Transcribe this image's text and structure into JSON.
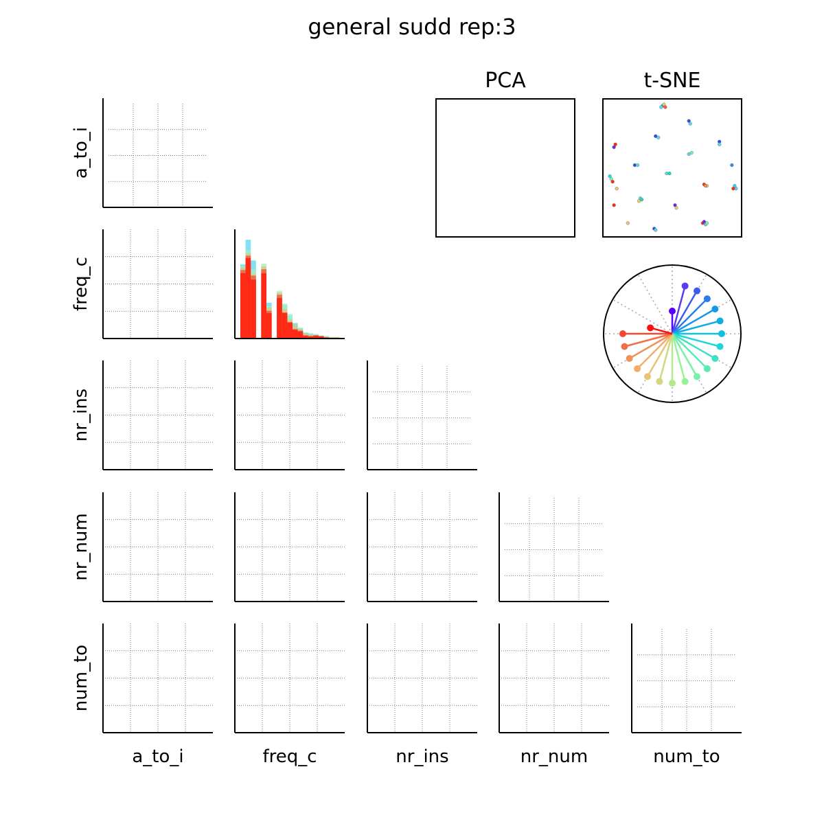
{
  "title": "general sudd rep:3",
  "variables": [
    "a_to_i",
    "freq_c",
    "nr_ins",
    "nr_num",
    "num_to"
  ],
  "pca_title": "PCA",
  "tsne_title": "t-SNE",
  "chart_data": [
    {
      "type": "matrix",
      "title": "general sudd rep:3",
      "rows": [
        "a_to_i",
        "freq_c",
        "nr_ins",
        "nr_num",
        "num_to"
      ],
      "columns": [
        "a_to_i",
        "freq_c",
        "nr_ins",
        "nr_num",
        "num_to"
      ],
      "grid": true,
      "note_cells": "all off-diagonal and diagonal panels empty except freq_c histogram"
    },
    {
      "type": "bar",
      "panel": "freq_c histogram (diagonal)",
      "stacking": "overlaid",
      "bins": 20,
      "series": [
        {
          "color": "#ff2a15",
          "values": [
            8.1,
            10.0,
            7.3,
            0.0,
            8.1,
            3.1,
            0.0,
            5.0,
            3.1,
            1.9,
            1.0,
            0.8,
            0.3,
            0.2,
            0.3,
            0.2,
            0.0,
            0.0,
            0.0,
            0.0
          ]
        },
        {
          "color": "#f0503a",
          "values": [
            8.5,
            10.3,
            7.8,
            0.0,
            8.6,
            3.4,
            0.0,
            5.4,
            3.2,
            2.0,
            1.1,
            0.9,
            0.3,
            0.2,
            0.3,
            0.2,
            0.1,
            0.0,
            0.0,
            0.0
          ]
        },
        {
          "color": "#e6c47c",
          "values": [
            8.8,
            10.6,
            8.0,
            0.0,
            9.0,
            3.8,
            0.0,
            5.7,
            3.6,
            2.3,
            1.5,
            1.0,
            0.5,
            0.3,
            0.3,
            0.2,
            0.1,
            0.1,
            0.1,
            0.0
          ]
        },
        {
          "color": "#a0f0c0",
          "values": [
            9.0,
            11.0,
            8.6,
            0.0,
            9.3,
            4.0,
            0.0,
            5.9,
            4.3,
            3.0,
            1.9,
            1.3,
            0.7,
            0.6,
            0.5,
            0.3,
            0.2,
            0.1,
            0.1,
            0.0
          ]
        },
        {
          "color": "#7a5df0",
          "values": [
            6.0,
            8.2,
            5.5,
            0.0,
            6.5,
            2.6,
            0.0,
            4.1,
            2.5,
            1.6,
            1.8,
            1.1,
            0.6,
            0.4,
            0.2,
            0.1,
            0.0,
            0.0,
            0.0,
            0.0
          ]
        },
        {
          "color": "#5ad6f0",
          "values": [
            9.2,
            12.3,
            9.7,
            0.0,
            8.9,
            4.4,
            0.0,
            5.6,
            4.1,
            2.8,
            1.6,
            1.2,
            0.6,
            0.5,
            0.4,
            0.3,
            0.2,
            0.1,
            0.1,
            0.0
          ]
        }
      ]
    },
    {
      "type": "scatter",
      "panel": "t-SNE",
      "title": "t-SNE",
      "points": [
        [
          0.43,
          0.05,
          "#2a8df0"
        ],
        [
          0.44,
          0.04,
          "#e6c47c"
        ],
        [
          0.42,
          0.06,
          "#5ad6f0"
        ],
        [
          0.45,
          0.06,
          "#ff5a2a"
        ],
        [
          0.62,
          0.16,
          "#2a4ff0"
        ],
        [
          0.63,
          0.18,
          "#5ad6f0"
        ],
        [
          0.38,
          0.27,
          "#2a4ff0"
        ],
        [
          0.4,
          0.28,
          "#5ad6f0"
        ],
        [
          0.09,
          0.33,
          "#ff2a15"
        ],
        [
          0.08,
          0.35,
          "#6a2af0"
        ],
        [
          0.84,
          0.31,
          "#2a4ff0"
        ],
        [
          0.84,
          0.33,
          "#5ad6f0"
        ],
        [
          0.62,
          0.4,
          "#5ad6f0"
        ],
        [
          0.64,
          0.39,
          "#7af0b0"
        ],
        [
          0.23,
          0.48,
          "#2a4ff0"
        ],
        [
          0.25,
          0.48,
          "#5ad6f0"
        ],
        [
          0.93,
          0.48,
          "#2a8df0"
        ],
        [
          0.46,
          0.54,
          "#5ad6f0"
        ],
        [
          0.48,
          0.54,
          "#2ad6b0"
        ],
        [
          0.05,
          0.56,
          "#2ad6f0"
        ],
        [
          0.06,
          0.58,
          "#7af0b0"
        ],
        [
          0.07,
          0.6,
          "#ff2a15"
        ],
        [
          0.73,
          0.62,
          "#ff2a15"
        ],
        [
          0.75,
          0.63,
          "#e6c47c"
        ],
        [
          0.74,
          0.63,
          "#f0903a"
        ],
        [
          0.95,
          0.63,
          "#2ad6f0"
        ],
        [
          0.96,
          0.65,
          "#5ad6f0"
        ],
        [
          0.94,
          0.65,
          "#ff2a15"
        ],
        [
          0.1,
          0.65,
          "#e6c47c"
        ],
        [
          0.27,
          0.72,
          "#5ad6f0"
        ],
        [
          0.28,
          0.73,
          "#2ad6b0"
        ],
        [
          0.26,
          0.74,
          "#e6c47c"
        ],
        [
          0.08,
          0.77,
          "#ff2a15"
        ],
        [
          0.52,
          0.77,
          "#6a2af0"
        ],
        [
          0.53,
          0.79,
          "#e6c47c"
        ],
        [
          0.18,
          0.9,
          "#e6c47c"
        ],
        [
          0.72,
          0.9,
          "#ff2a15"
        ],
        [
          0.74,
          0.91,
          "#5ad6f0"
        ],
        [
          0.73,
          0.89,
          "#6a2af0"
        ],
        [
          0.75,
          0.9,
          "#7af0b0"
        ],
        [
          0.37,
          0.94,
          "#2a4ff0"
        ],
        [
          0.38,
          0.95,
          "#5ad6f0"
        ]
      ]
    },
    {
      "type": "polar",
      "panel": "colour legend wheel",
      "spokes": [
        {
          "angle_deg": -90,
          "r": 0.33,
          "color": "#5a00ff"
        },
        {
          "angle_deg": -75,
          "r": 0.72,
          "color": "#5a3cf0"
        },
        {
          "angle_deg": -60,
          "r": 0.72,
          "color": "#3c5af0"
        },
        {
          "angle_deg": -45,
          "r": 0.72,
          "color": "#2a7af0"
        },
        {
          "angle_deg": -30,
          "r": 0.72,
          "color": "#1a96e6"
        },
        {
          "angle_deg": -15,
          "r": 0.72,
          "color": "#10aee0"
        },
        {
          "angle_deg": 0,
          "r": 0.72,
          "color": "#10c0e0"
        },
        {
          "angle_deg": 15,
          "r": 0.72,
          "color": "#20d6d6"
        },
        {
          "angle_deg": 30,
          "r": 0.72,
          "color": "#40e0c4"
        },
        {
          "angle_deg": 45,
          "r": 0.72,
          "color": "#5aeab4"
        },
        {
          "angle_deg": 60,
          "r": 0.72,
          "color": "#78f0a8"
        },
        {
          "angle_deg": 75,
          "r": 0.72,
          "color": "#96f096"
        },
        {
          "angle_deg": 90,
          "r": 0.72,
          "color": "#b4e68a"
        },
        {
          "angle_deg": 105,
          "r": 0.72,
          "color": "#d2d67e"
        },
        {
          "angle_deg": 120,
          "r": 0.72,
          "color": "#e6c474"
        },
        {
          "angle_deg": 135,
          "r": 0.72,
          "color": "#f0ae6a"
        },
        {
          "angle_deg": 150,
          "r": 0.72,
          "color": "#f0905a"
        },
        {
          "angle_deg": 165,
          "r": 0.72,
          "color": "#f06e48"
        },
        {
          "angle_deg": 180,
          "r": 0.72,
          "color": "#f04a34"
        },
        {
          "angle_deg": 195,
          "r": 0.33,
          "color": "#ff1010"
        }
      ]
    }
  ]
}
